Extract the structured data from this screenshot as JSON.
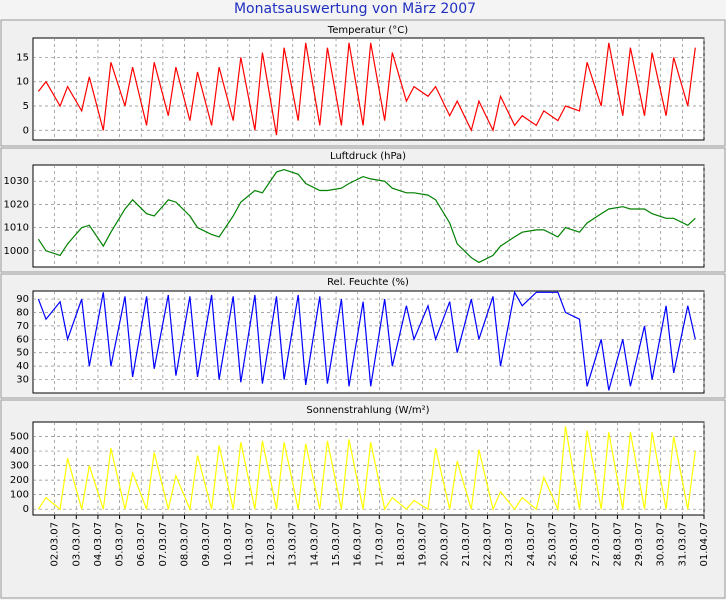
{
  "chart_data": {
    "type": "line",
    "title": "Monatsauswertung von März 2007",
    "x": [
      1.25,
      1.6,
      2.25,
      2.6,
      3.25,
      3.6,
      4.25,
      4.6,
      5.25,
      5.6,
      6.25,
      6.6,
      7.25,
      7.6,
      8.25,
      8.6,
      9.25,
      9.6,
      10.25,
      10.6,
      11.25,
      11.6,
      12.25,
      12.6,
      13.25,
      13.6,
      14.25,
      14.6,
      15.25,
      15.6,
      16.25,
      16.6,
      17.25,
      17.6,
      18.25,
      18.6,
      19.25,
      19.6,
      20.25,
      20.6,
      21.25,
      21.6,
      22.25,
      22.6,
      23.25,
      23.6,
      24.25,
      24.6,
      25.25,
      25.6,
      26.25,
      26.6,
      27.25,
      27.6,
      28.25,
      28.6,
      29.25,
      29.6,
      30.25,
      30.6,
      31.25,
      31.6
    ],
    "xlim": [
      1,
      32
    ],
    "xticks": [
      {
        "value": 2,
        "label": "02.03.07"
      },
      {
        "value": 3,
        "label": "03.03.07"
      },
      {
        "value": 4,
        "label": "04.03.07"
      },
      {
        "value": 5,
        "label": "05.03.07"
      },
      {
        "value": 6,
        "label": "06.03.07"
      },
      {
        "value": 7,
        "label": "07.03.07"
      },
      {
        "value": 8,
        "label": "08.03.07"
      },
      {
        "value": 9,
        "label": "09.03.07"
      },
      {
        "value": 10,
        "label": "10.03.07"
      },
      {
        "value": 11,
        "label": "11.03.07"
      },
      {
        "value": 12,
        "label": "12.03.07"
      },
      {
        "value": 13,
        "label": "13.03.07"
      },
      {
        "value": 14,
        "label": "14.03.07"
      },
      {
        "value": 15,
        "label": "15.03.07"
      },
      {
        "value": 16,
        "label": "16.03.07"
      },
      {
        "value": 17,
        "label": "17.03.07"
      },
      {
        "value": 18,
        "label": "18.03.07"
      },
      {
        "value": 19,
        "label": "19.03.07"
      },
      {
        "value": 20,
        "label": "20.03.07"
      },
      {
        "value": 21,
        "label": "21.03.07"
      },
      {
        "value": 22,
        "label": "22.03.07"
      },
      {
        "value": 23,
        "label": "23.03.07"
      },
      {
        "value": 24,
        "label": "24.03.07"
      },
      {
        "value": 25,
        "label": "25.03.07"
      },
      {
        "value": 26,
        "label": "26.03.07"
      },
      {
        "value": 27,
        "label": "27.03.07"
      },
      {
        "value": 28,
        "label": "28.03.07"
      },
      {
        "value": 29,
        "label": "29.03.07"
      },
      {
        "value": 30,
        "label": "30.03.07"
      },
      {
        "value": 31,
        "label": "31.03.07"
      },
      {
        "value": 32,
        "label": "01.04.07"
      }
    ],
    "grid": true,
    "panels": [
      {
        "title": "Temperatur (°C)",
        "color": "#ff0000",
        "ylim": [
          -2,
          19
        ],
        "yticks": [
          0,
          5,
          10,
          15
        ],
        "values": [
          8,
          10,
          5,
          9,
          4,
          11,
          0,
          14,
          5,
          13,
          1,
          14,
          3,
          13,
          2,
          12,
          1,
          13,
          2,
          15,
          0,
          16,
          -1,
          17,
          2,
          18,
          1,
          17,
          1,
          18,
          1,
          18,
          2,
          16,
          6,
          9,
          7,
          9,
          3,
          6,
          0,
          6,
          0,
          7,
          1,
          3,
          1,
          4,
          2,
          5,
          4,
          14,
          5,
          18,
          3,
          17,
          3,
          16,
          3,
          15,
          5,
          17
        ]
      },
      {
        "title": "Luftdruck (hPa)",
        "color": "#008000",
        "ylim": [
          993,
          1037
        ],
        "yticks": [
          1000,
          1010,
          1020,
          1030
        ],
        "values": [
          1005,
          1000,
          998,
          1003,
          1010,
          1011,
          1002,
          1008,
          1018,
          1022,
          1016,
          1015,
          1022,
          1021,
          1015,
          1010,
          1007,
          1006,
          1015,
          1021,
          1026,
          1025,
          1034,
          1035,
          1033,
          1029,
          1026,
          1026,
          1027,
          1029,
          1032,
          1031,
          1030,
          1027,
          1025,
          1025,
          1024,
          1022,
          1012,
          1003,
          997,
          995,
          998,
          1002,
          1006,
          1008,
          1009,
          1009,
          1006,
          1010,
          1008,
          1012,
          1016,
          1018,
          1019,
          1018,
          1018,
          1016,
          1014,
          1014,
          1011,
          1014
        ]
      },
      {
        "title": "Rel. Feuchte (%)",
        "color": "#0000ff",
        "ylim": [
          20,
          96
        ],
        "yticks": [
          30,
          40,
          50,
          60,
          70,
          80,
          90
        ],
        "values": [
          90,
          75,
          88,
          60,
          90,
          40,
          95,
          40,
          92,
          32,
          92,
          38,
          93,
          33,
          92,
          32,
          93,
          30,
          92,
          28,
          93,
          27,
          92,
          30,
          93,
          26,
          92,
          27,
          90,
          25,
          88,
          25,
          90,
          40,
          85,
          60,
          85,
          60,
          88,
          50,
          90,
          60,
          92,
          40,
          95,
          85,
          95,
          95,
          95,
          80,
          75,
          25,
          60,
          22,
          60,
          25,
          70,
          30,
          85,
          35,
          85,
          60
        ]
      },
      {
        "title": "Sonnenstrahlung (W/m²)",
        "color": "#ffff00",
        "ylim": [
          -40,
          600
        ],
        "yticks": [
          0,
          100,
          200,
          300,
          400,
          500
        ],
        "values": [
          0,
          80,
          0,
          350,
          0,
          300,
          0,
          420,
          0,
          250,
          0,
          390,
          0,
          230,
          0,
          370,
          0,
          440,
          0,
          460,
          0,
          470,
          0,
          460,
          0,
          450,
          0,
          470,
          0,
          480,
          0,
          460,
          0,
          80,
          0,
          60,
          0,
          420,
          0,
          330,
          0,
          410,
          0,
          120,
          0,
          80,
          0,
          220,
          0,
          570,
          0,
          540,
          0,
          530,
          0,
          530,
          0,
          530,
          0,
          500,
          0,
          400
        ]
      }
    ]
  }
}
